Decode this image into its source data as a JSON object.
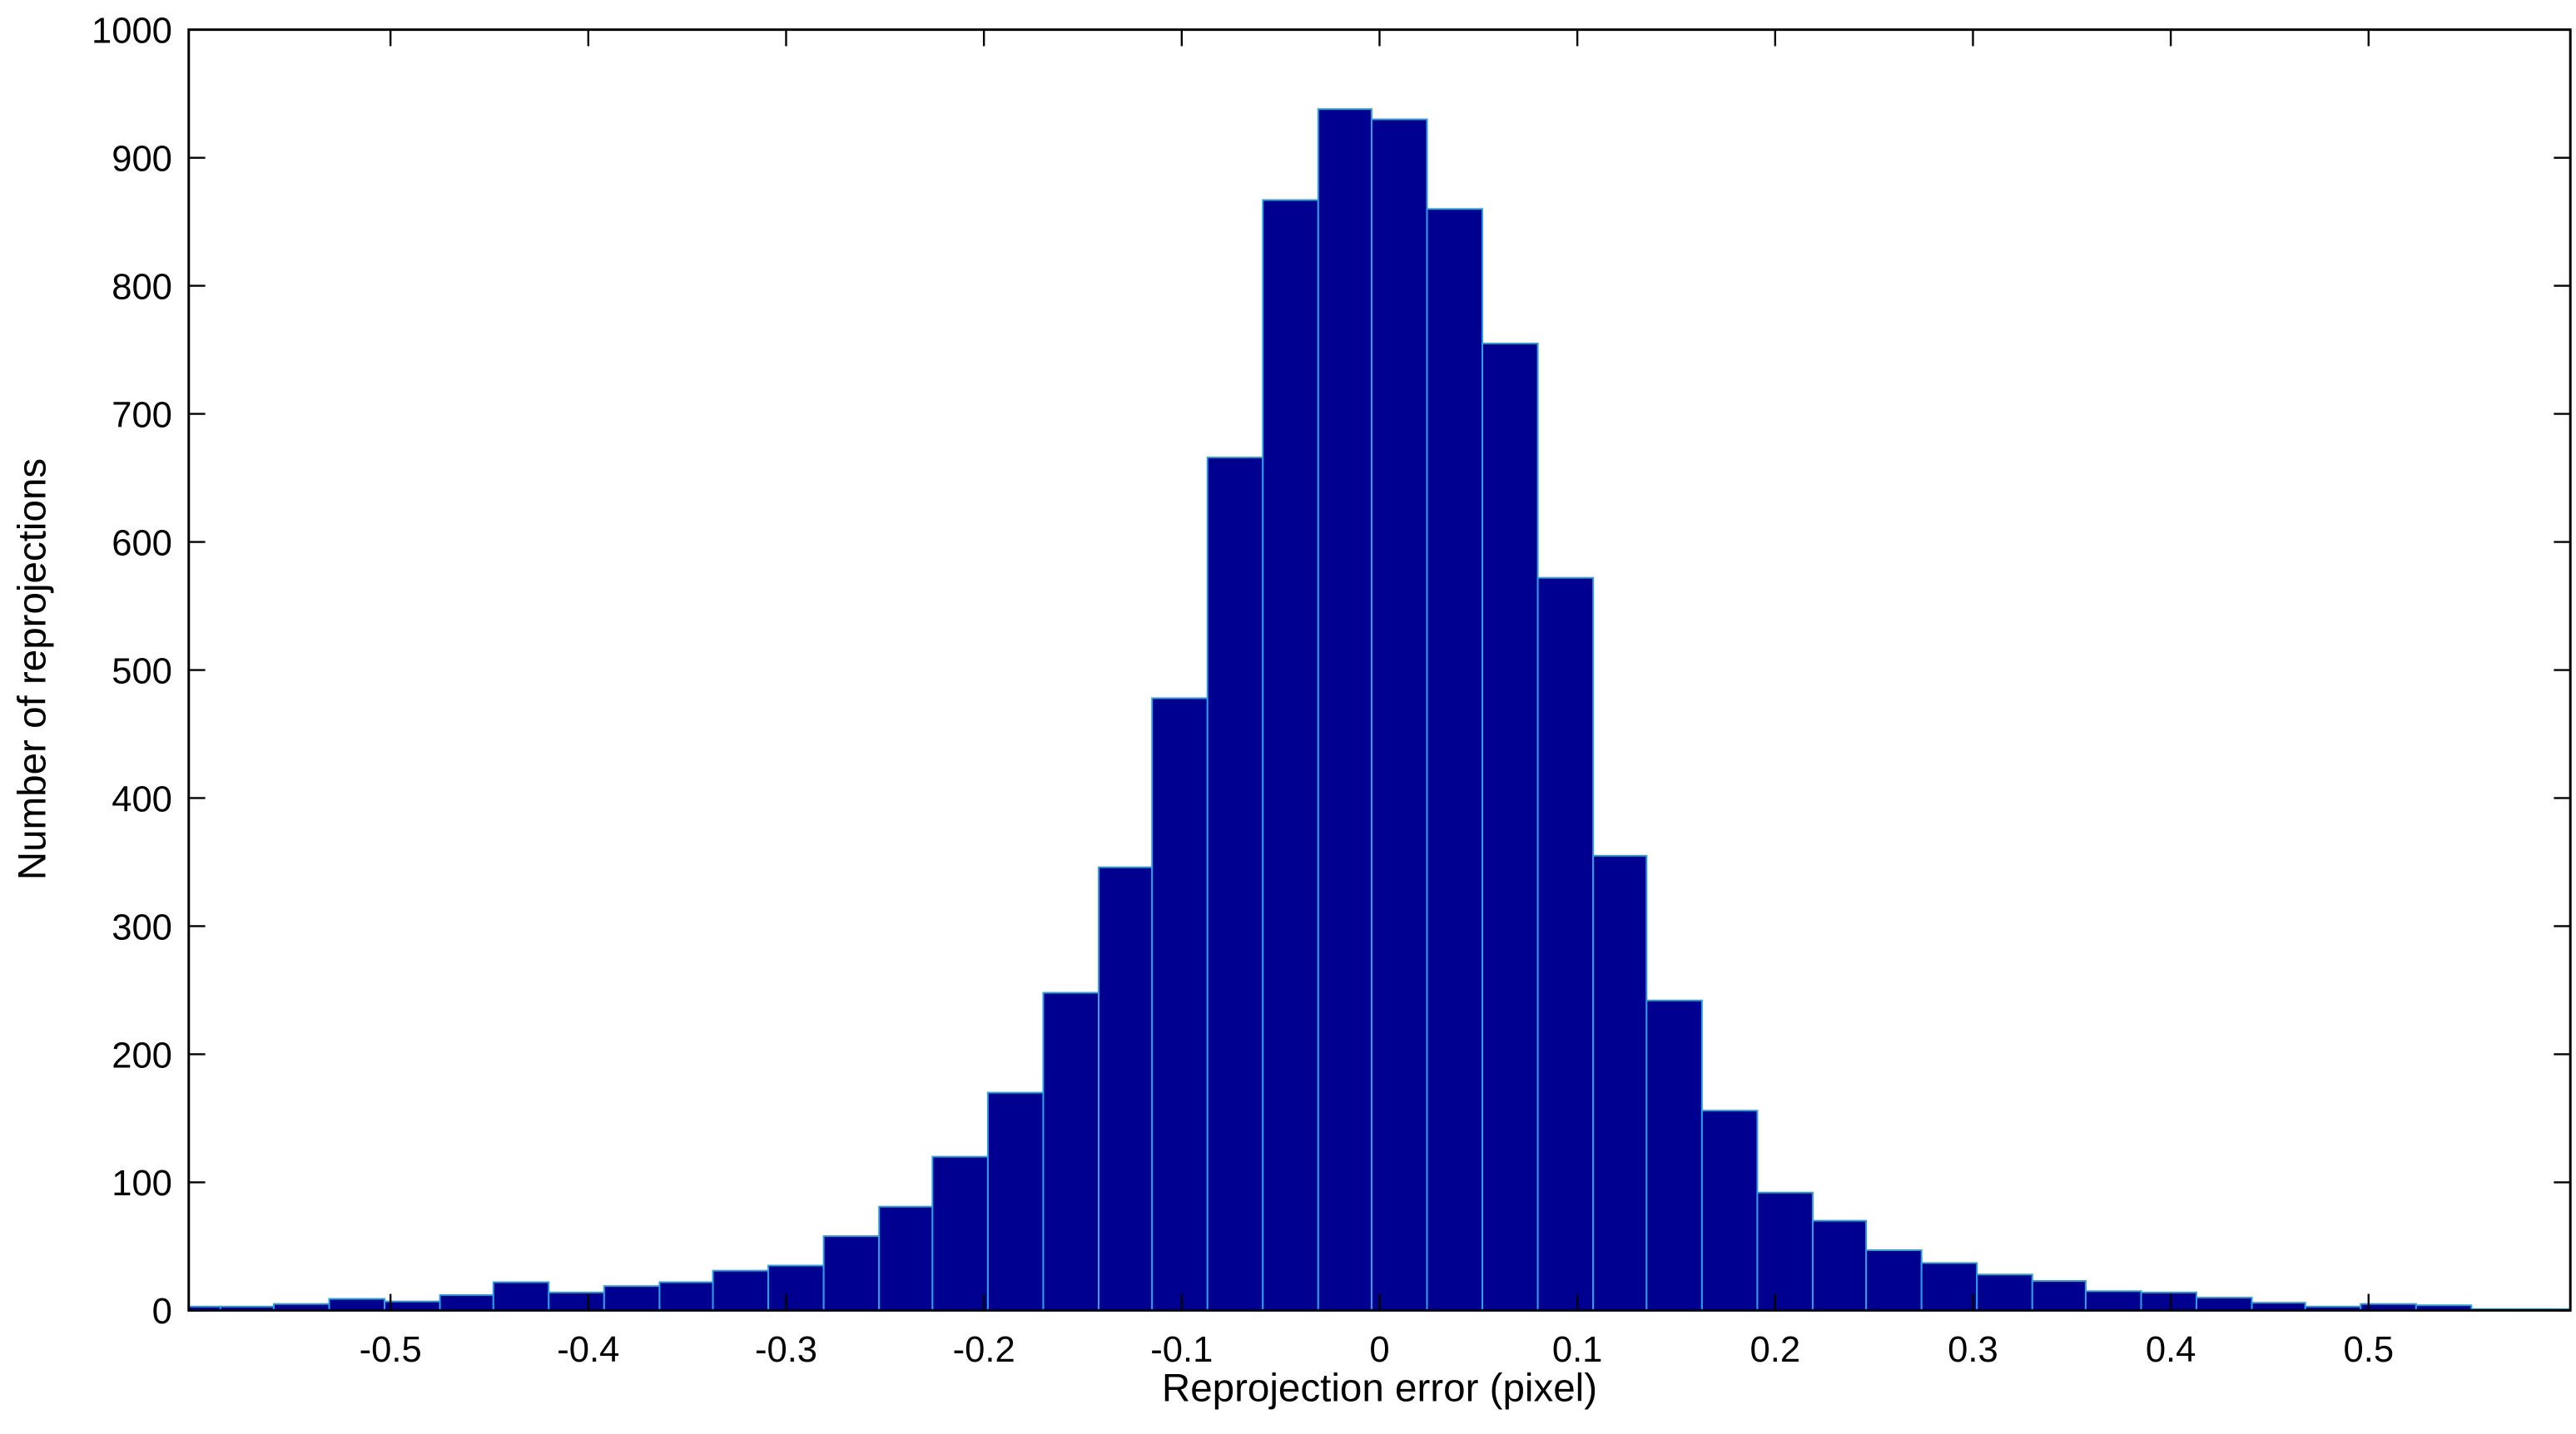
{
  "chart_data": {
    "type": "histogram",
    "x_label": "Reprojection error (pixel)",
    "y_label": "Number of reprojections",
    "bins": [
      -0.614,
      -0.586,
      -0.559,
      -0.531,
      -0.503,
      -0.475,
      -0.448,
      -0.42,
      -0.392,
      -0.364,
      -0.337,
      -0.309,
      -0.281,
      -0.253,
      -0.226,
      -0.198,
      -0.17,
      -0.142,
      -0.115,
      -0.087,
      -0.059,
      -0.031,
      -0.004,
      0.024,
      0.052,
      0.08,
      0.108,
      0.135,
      0.163,
      0.191,
      0.219,
      0.246,
      0.274,
      0.302,
      0.33,
      0.357,
      0.385,
      0.413,
      0.441,
      0.468,
      0.496,
      0.524,
      0.552,
      0.579,
      0.607
    ],
    "values": [
      3,
      3,
      5,
      9,
      7,
      12,
      22,
      14,
      19,
      22,
      31,
      35,
      58,
      81,
      120,
      170,
      248,
      346,
      478,
      666,
      867,
      938,
      930,
      860,
      755,
      572,
      355,
      242,
      156,
      92,
      70,
      47,
      37,
      28,
      23,
      15,
      14,
      10,
      6,
      3,
      5,
      4,
      1,
      1
    ],
    "color": "#000090",
    "edge_color": "#2aa0e8",
    "xlim": [
      -0.602,
      0.602
    ],
    "xticks": [
      -0.5,
      -0.4,
      -0.3,
      -0.2,
      -0.1,
      0,
      0.1,
      0.2,
      0.3,
      0.4,
      0.5
    ],
    "ylim": [
      0,
      1000
    ],
    "yticks": [
      0,
      100,
      200,
      300,
      400,
      500,
      600,
      700,
      800,
      900,
      1000
    ]
  }
}
